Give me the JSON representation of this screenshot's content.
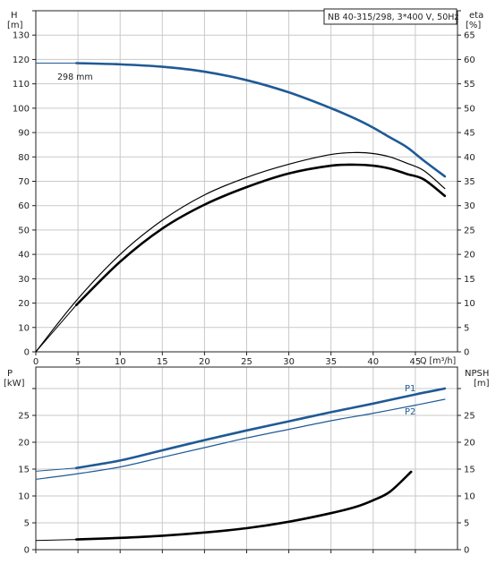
{
  "chart_data": [
    {
      "type": "line",
      "panel": "top",
      "title_box": "NB 40-315/298, 3*400 V, 50Hz",
      "left_axis": {
        "label": "H",
        "unit": "[m]",
        "ylim": [
          0,
          140
        ],
        "ticks": [
          0,
          10,
          20,
          30,
          40,
          50,
          60,
          70,
          80,
          90,
          100,
          110,
          120,
          130
        ]
      },
      "right_axis": {
        "label": "eta",
        "unit": "[%]",
        "ylim": [
          0,
          70
        ],
        "ticks": [
          0,
          5,
          10,
          15,
          20,
          25,
          30,
          35,
          40,
          45,
          50,
          55,
          60,
          65
        ]
      },
      "x_axis": {
        "label": "Q",
        "unit": "[m³/h]",
        "xlim": [
          0,
          50
        ],
        "ticks": [
          0,
          5,
          10,
          15,
          20,
          25,
          30,
          35,
          40,
          45
        ]
      },
      "grid": true,
      "series": [
        {
          "name": "298 mm",
          "axis": "left",
          "color": "#1f5a96",
          "thin_x": [
            0,
            4.8
          ],
          "x": [
            4.8,
            10,
            15,
            20,
            25,
            30,
            35,
            38,
            40,
            42,
            44,
            46,
            48.5
          ],
          "y": [
            118.5,
            118,
            117,
            115,
            111.5,
            106.5,
            100,
            95.5,
            92,
            88,
            84,
            78.5,
            72
          ]
        },
        {
          "axis": "right",
          "color": "#000000",
          "style": "thin",
          "x": [
            0,
            4.8,
            10,
            15,
            20,
            25,
            30,
            35,
            38,
            40,
            42,
            44,
            46,
            48.5
          ],
          "y": [
            0,
            10.5,
            20,
            27,
            32.2,
            35.8,
            38.5,
            40.5,
            40.9,
            40.7,
            40,
            38.7,
            37.2,
            33.5
          ]
        },
        {
          "axis": "right",
          "color": "#000000",
          "style": "thick",
          "thin_x": [
            0,
            4.8
          ],
          "x": [
            4.8,
            10,
            15,
            20,
            25,
            30,
            35,
            38,
            40,
            42,
            44,
            46,
            48.5
          ],
          "y": [
            9.6,
            18.5,
            25.3,
            30.2,
            33.8,
            36.6,
            38.2,
            38.4,
            38.2,
            37.6,
            36.5,
            35.4,
            32
          ]
        }
      ]
    },
    {
      "type": "line",
      "panel": "bottom",
      "left_axis": {
        "label": "P",
        "unit": "[kW]",
        "ylim": [
          0,
          34
        ],
        "ticks": [
          0,
          5,
          10,
          15,
          20,
          25
        ]
      },
      "right_axis": {
        "label": "NPSH",
        "unit": "[m]",
        "ylim": [
          0,
          34
        ],
        "ticks": [
          0,
          5,
          10,
          15,
          20,
          25
        ]
      },
      "x_axis": {
        "xlim": [
          0,
          50
        ]
      },
      "grid": true,
      "series": [
        {
          "name": "P1",
          "axis": "left",
          "color": "#1f5a96",
          "style": "thick",
          "thin_x": [
            0,
            4.8
          ],
          "thin_y": [
            14.6,
            15.2
          ],
          "x": [
            4.8,
            10,
            15,
            20,
            25,
            30,
            35,
            40,
            45,
            48.5
          ],
          "y": [
            15.2,
            16.6,
            18.5,
            20.4,
            22.2,
            23.9,
            25.6,
            27.2,
            28.9,
            30
          ]
        },
        {
          "name": "P2",
          "axis": "left",
          "color": "#1f5a96",
          "style": "thin",
          "x": [
            0,
            4.8,
            10,
            15,
            20,
            25,
            30,
            35,
            40,
            45,
            48.5
          ],
          "y": [
            13.1,
            14.1,
            15.4,
            17.2,
            19,
            20.8,
            22.4,
            24,
            25.4,
            26.9,
            28
          ]
        },
        {
          "axis": "right",
          "color": "#000000",
          "style": "thick",
          "thin_x": [
            0,
            4.8
          ],
          "thin_y": [
            1.7,
            1.9
          ],
          "x": [
            4.8,
            10,
            15,
            20,
            25,
            30,
            35,
            38,
            40,
            42,
            44.5
          ],
          "y": [
            1.9,
            2.2,
            2.6,
            3.2,
            4.0,
            5.2,
            6.8,
            8.0,
            9.2,
            10.8,
            14.5
          ]
        }
      ]
    }
  ]
}
